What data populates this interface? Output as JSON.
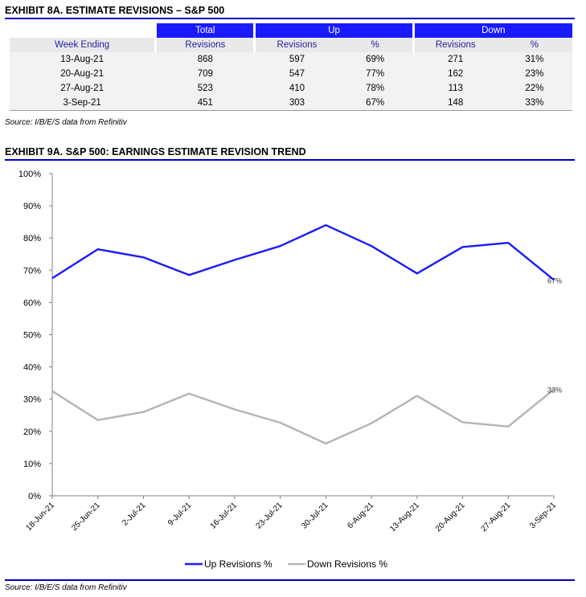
{
  "exhibit8": {
    "title": "EXHIBIT 8A.  ESTIMATE REVISIONS – S&P 500",
    "header_total": "Total",
    "header_up": "Up",
    "header_down": "Down",
    "col_week": "Week Ending",
    "col_total_rev": "Revisions",
    "col_up_rev": "Revisions",
    "col_up_pct": "%",
    "col_down_rev": "Revisions",
    "col_down_pct": "%",
    "rows": [
      {
        "week": "13-Aug-21",
        "total": "868",
        "up_rev": "597",
        "up_pct": "69%",
        "down_rev": "271",
        "down_pct": "31%"
      },
      {
        "week": "20-Aug-21",
        "total": "709",
        "up_rev": "547",
        "up_pct": "77%",
        "down_rev": "162",
        "down_pct": "23%"
      },
      {
        "week": "27-Aug-21",
        "total": "523",
        "up_rev": "410",
        "up_pct": "78%",
        "down_rev": "113",
        "down_pct": "22%"
      },
      {
        "week": "3-Sep-21",
        "total": "451",
        "up_rev": "303",
        "up_pct": "67%",
        "down_rev": "148",
        "down_pct": "33%"
      }
    ],
    "source": "Source: I/B/E/S data from Refinitiv"
  },
  "exhibit9": {
    "title": "EXHIBIT 9A.  S&P 500: EARNINGS ESTIMATE REVISION TREND",
    "source": "Source: I/B/E/S data from Refinitiv"
  },
  "colors": {
    "accent": "#0000c8",
    "up_line": "#1a1aff",
    "down_line": "#b4b4b4"
  },
  "chart_data": {
    "type": "line",
    "x": [
      "18-Jun-21",
      "25-Jun-21",
      "2-Jul-21",
      "9-Jul-21",
      "16-Jul-21",
      "23-Jul-21",
      "30-Jul-21",
      "6-Aug-21",
      "13-Aug-21",
      "20-Aug-21",
      "27-Aug-21",
      "3-Sep-21"
    ],
    "series": [
      {
        "name": "Up Revisions %",
        "color": "#1a1aff",
        "values": [
          67.5,
          76.5,
          74,
          68.5,
          73.2,
          77.5,
          84,
          77.5,
          69,
          77.2,
          78.5,
          67
        ]
      },
      {
        "name": "Down Revisions %",
        "color": "#b4b4b4",
        "values": [
          32.5,
          23.5,
          26,
          31.7,
          26.8,
          22.7,
          16.2,
          22.5,
          31,
          22.8,
          21.5,
          33
        ]
      }
    ],
    "end_labels": [
      "67%",
      "33%"
    ],
    "yticks": [
      "0%",
      "10%",
      "20%",
      "30%",
      "40%",
      "50%",
      "60%",
      "70%",
      "80%",
      "90%",
      "100%"
    ],
    "ylim": [
      0,
      100
    ],
    "grid": false,
    "legend": "bottom"
  }
}
